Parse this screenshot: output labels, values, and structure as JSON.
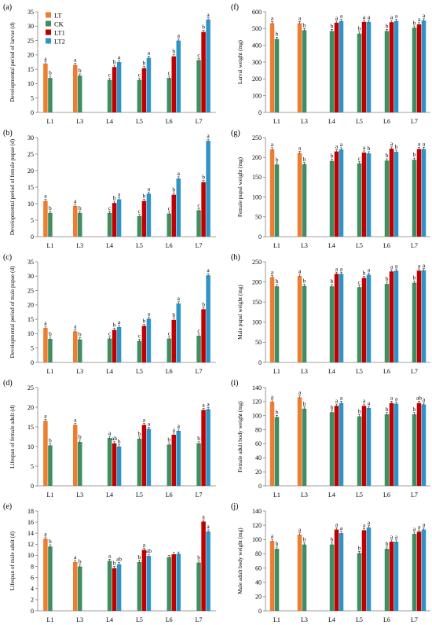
{
  "chart_data": [
    {
      "id": "a",
      "type": "bar",
      "panel_label": "(a)",
      "ylabel": "Developmental period of larvae (d)",
      "ylim": [
        0,
        35
      ],
      "yticks": [
        0,
        5,
        10,
        15,
        20,
        25,
        30,
        35
      ],
      "categories": [
        "L1",
        "L3",
        "L4",
        "L5",
        "L6",
        "L7"
      ],
      "series": [
        {
          "name": "LT",
          "values": [
            17,
            16.5,
            null,
            null,
            null,
            null
          ],
          "letters": [
            "a",
            "a",
            "",
            "",
            "",
            ""
          ]
        },
        {
          "name": "CK",
          "values": [
            12,
            12.8,
            11.3,
            11.3,
            12,
            18.2
          ],
          "letters": [
            "b",
            "b",
            "c",
            "c",
            "c",
            "c"
          ]
        },
        {
          "name": "LT1",
          "values": [
            null,
            null,
            15.8,
            15.4,
            19.5,
            28
          ],
          "letters": [
            "",
            "",
            "b",
            "b",
            "b",
            "b"
          ]
        },
        {
          "name": "LT2",
          "values": [
            null,
            null,
            17.5,
            19,
            25,
            32.3
          ],
          "letters": [
            "",
            "",
            "a",
            "a",
            "a",
            "a"
          ]
        }
      ]
    },
    {
      "id": "b",
      "type": "bar",
      "panel_label": "(b)",
      "ylabel": "Developmental period of female pupae (d)",
      "ylim": [
        0,
        30
      ],
      "yticks": [
        0,
        5,
        10,
        15,
        20,
        25,
        30
      ],
      "categories": [
        "L1",
        "L3",
        "L4",
        "L5",
        "L6",
        "L7"
      ],
      "series": [
        {
          "name": "LT",
          "values": [
            10.8,
            9.3,
            null,
            null,
            null,
            null
          ],
          "letters": [
            "a",
            "a",
            "",
            "",
            "",
            ""
          ]
        },
        {
          "name": "CK",
          "values": [
            7.2,
            7.2,
            7.2,
            6.2,
            7,
            8
          ],
          "letters": [
            "b",
            "b",
            "c",
            "c",
            "c",
            "c"
          ]
        },
        {
          "name": "LT1",
          "values": [
            null,
            null,
            10.2,
            10.8,
            12.7,
            16.5
          ],
          "letters": [
            "",
            "",
            "b",
            "b",
            "b",
            "b"
          ]
        },
        {
          "name": "LT2",
          "values": [
            null,
            null,
            11.3,
            13,
            17.6,
            29
          ],
          "letters": [
            "",
            "",
            "a",
            "a",
            "a",
            "a"
          ]
        }
      ]
    },
    {
      "id": "c",
      "type": "bar",
      "panel_label": "(c)",
      "ylabel": "Developmental period of male pupae (d)",
      "ylim": [
        0,
        35
      ],
      "yticks": [
        0,
        5,
        10,
        15,
        20,
        25,
        30,
        35
      ],
      "categories": [
        "L1",
        "L3",
        "L4",
        "L5",
        "L6",
        "L7"
      ],
      "series": [
        {
          "name": "LT",
          "values": [
            12,
            10.8,
            null,
            null,
            null,
            null
          ],
          "letters": [
            "a",
            "a",
            "",
            "",
            "",
            ""
          ]
        },
        {
          "name": "CK",
          "values": [
            8.2,
            8,
            8.3,
            7.5,
            8.3,
            9.3
          ],
          "letters": [
            "b",
            "b",
            "c",
            "c",
            "c",
            "c"
          ]
        },
        {
          "name": "LT1",
          "values": [
            null,
            null,
            11.3,
            12.7,
            14.8,
            18.5
          ],
          "letters": [
            "",
            "",
            "b",
            "b",
            "b",
            "b"
          ]
        },
        {
          "name": "LT2",
          "values": [
            null,
            null,
            12.3,
            15.2,
            20.5,
            30.3
          ],
          "letters": [
            "",
            "",
            "a",
            "a",
            "a",
            "a"
          ]
        }
      ]
    },
    {
      "id": "d",
      "type": "bar",
      "panel_label": "(d)",
      "ylabel": "Lifespan of female adult (d)",
      "ylim": [
        0,
        25
      ],
      "yticks": [
        0,
        5,
        10,
        15,
        20,
        25
      ],
      "categories": [
        "L1",
        "L3",
        "L4",
        "L5",
        "L6",
        "L7"
      ],
      "series": [
        {
          "name": "LT",
          "values": [
            16.5,
            15.5,
            null,
            null,
            null,
            null
          ],
          "letters": [
            "a",
            "a",
            "",
            "",
            "",
            ""
          ]
        },
        {
          "name": "CK",
          "values": [
            10.3,
            11.2,
            12.2,
            12,
            10.5,
            10.8
          ],
          "letters": [
            "b",
            "b",
            "a",
            "b",
            "b",
            "b"
          ]
        },
        {
          "name": "LT1",
          "values": [
            null,
            null,
            10.8,
            15.5,
            13,
            19.3
          ],
          "letters": [
            "",
            "",
            "ab",
            "a",
            "a",
            "a"
          ]
        },
        {
          "name": "LT2",
          "values": [
            null,
            null,
            10,
            14.5,
            14,
            19.5
          ],
          "letters": [
            "",
            "",
            "b",
            "a",
            "a",
            "a"
          ]
        }
      ]
    },
    {
      "id": "e",
      "type": "bar",
      "panel_label": "(e)",
      "ylabel": "Lifespan of male adult (d)",
      "ylim": [
        0,
        18
      ],
      "yticks": [
        0,
        2,
        4,
        6,
        8,
        10,
        12,
        14,
        16,
        18
      ],
      "categories": [
        "L1",
        "L3",
        "L4",
        "L5",
        "L6",
        "L7"
      ],
      "series": [
        {
          "name": "LT",
          "values": [
            13,
            8.8,
            null,
            null,
            null,
            null
          ],
          "letters": [
            "a",
            "a",
            "",
            "",
            "",
            ""
          ]
        },
        {
          "name": "CK",
          "values": [
            11.6,
            8,
            9,
            8.8,
            9.7,
            8.7
          ],
          "letters": [
            "b",
            "b",
            "a",
            "b",
            "",
            "b"
          ]
        },
        {
          "name": "LT1",
          "values": [
            null,
            null,
            7.7,
            11,
            10.2,
            16.1
          ],
          "letters": [
            "",
            "",
            "b",
            "a",
            "",
            "a"
          ]
        },
        {
          "name": "LT2",
          "values": [
            null,
            null,
            8.4,
            9.9,
            10.3,
            14.3
          ],
          "letters": [
            "",
            "",
            "ab",
            "ab",
            "",
            "a"
          ]
        }
      ]
    },
    {
      "id": "f",
      "type": "bar",
      "panel_label": "(f)",
      "ylabel": "Larval weight (mg)",
      "ylim": [
        0,
        600
      ],
      "yticks": [
        0,
        100,
        200,
        300,
        400,
        500,
        600
      ],
      "categories": [
        "L1",
        "L3",
        "L4",
        "L5",
        "L6",
        "L7"
      ],
      "series": [
        {
          "name": "LT",
          "values": [
            532,
            532,
            null,
            null,
            null,
            null
          ],
          "letters": [
            "a",
            "a",
            "",
            "",
            "",
            ""
          ]
        },
        {
          "name": "CK",
          "values": [
            438,
            490,
            485,
            470,
            485,
            505
          ],
          "letters": [
            "b",
            "b",
            "b",
            "b",
            "b",
            "b"
          ]
        },
        {
          "name": "LT1",
          "values": [
            null,
            null,
            535,
            540,
            538,
            525
          ],
          "letters": [
            "",
            "",
            "a",
            "a",
            "a",
            "a"
          ]
        },
        {
          "name": "LT2",
          "values": [
            null,
            null,
            545,
            540,
            545,
            548
          ],
          "letters": [
            "",
            "",
            "a",
            "a",
            "a",
            "a"
          ]
        }
      ]
    },
    {
      "id": "g",
      "type": "bar",
      "panel_label": "(g)",
      "ylabel": "Female pupal weight (mg)",
      "ylim": [
        0,
        250
      ],
      "yticks": [
        0,
        50,
        100,
        150,
        200,
        250
      ],
      "categories": [
        "L1",
        "L3",
        "L4",
        "L5",
        "L6",
        "L7"
      ],
      "series": [
        {
          "name": "LT",
          "values": [
            220,
            211,
            null,
            null,
            null,
            null
          ],
          "letters": [
            "a",
            "a",
            "",
            "",
            "",
            ""
          ]
        },
        {
          "name": "CK",
          "values": [
            182,
            183,
            191,
            185,
            192,
            194
          ],
          "letters": [
            "b",
            "b",
            "b",
            "c",
            "b",
            "b"
          ]
        },
        {
          "name": "LT1",
          "values": [
            null,
            null,
            215,
            212,
            222,
            221
          ],
          "letters": [
            "",
            "",
            "a",
            "a",
            "a",
            "a"
          ]
        },
        {
          "name": "LT2",
          "values": [
            null,
            null,
            220,
            210,
            214,
            221
          ],
          "letters": [
            "",
            "",
            "a",
            "b",
            "b",
            "a"
          ]
        }
      ]
    },
    {
      "id": "h",
      "type": "bar",
      "panel_label": "(h)",
      "ylabel": "Male pupal weight (mg)",
      "ylim": [
        0,
        250
      ],
      "yticks": [
        0,
        50,
        100,
        150,
        200,
        250
      ],
      "categories": [
        "L1",
        "L3",
        "L4",
        "L5",
        "L6",
        "L7"
      ],
      "series": [
        {
          "name": "LT",
          "values": [
            212,
            215,
            null,
            null,
            null,
            null
          ],
          "letters": [
            "a",
            "a",
            "",
            "",
            "",
            ""
          ]
        },
        {
          "name": "CK",
          "values": [
            189,
            190,
            189,
            187,
            195,
            198
          ],
          "letters": [
            "b",
            "b",
            "b",
            "c",
            "b",
            "b"
          ]
        },
        {
          "name": "LT1",
          "values": [
            null,
            null,
            220,
            210,
            226,
            228
          ],
          "letters": [
            "",
            "",
            "a",
            "b",
            "a",
            "a"
          ]
        },
        {
          "name": "LT2",
          "values": [
            null,
            null,
            220,
            218,
            228,
            229
          ],
          "letters": [
            "",
            "",
            "a",
            "a",
            "a",
            "a"
          ]
        }
      ]
    },
    {
      "id": "i",
      "type": "bar",
      "panel_label": "(i)",
      "ylabel": "Female adult body weight (mg)",
      "ylim": [
        0,
        140
      ],
      "yticks": [
        0,
        20,
        40,
        60,
        80,
        100,
        120,
        140
      ],
      "categories": [
        "L1",
        "L3",
        "L4",
        "L5",
        "L6",
        "L7"
      ],
      "series": [
        {
          "name": "LT",
          "values": [
            120,
            126,
            null,
            null,
            null,
            null
          ],
          "letters": [
            "a",
            "a",
            "",
            "",
            "",
            ""
          ]
        },
        {
          "name": "CK",
          "values": [
            98,
            110,
            105,
            99,
            102,
            102
          ],
          "letters": [
            "b",
            "b",
            "b",
            "b",
            "b",
            "b"
          ]
        },
        {
          "name": "LT1",
          "values": [
            null,
            null,
            114,
            114,
            118,
            118
          ],
          "letters": [
            "",
            "",
            "a",
            "a",
            "a",
            "ab"
          ]
        },
        {
          "name": "LT2",
          "values": [
            null,
            null,
            118,
            111,
            117,
            116
          ],
          "letters": [
            "",
            "",
            "a",
            "a",
            "a",
            "a"
          ]
        }
      ]
    },
    {
      "id": "j",
      "type": "bar",
      "panel_label": "(j)",
      "ylabel": "Male adult body weight (mg)",
      "ylim": [
        0,
        140
      ],
      "yticks": [
        0,
        20,
        40,
        60,
        80,
        100,
        120,
        140
      ],
      "categories": [
        "L1",
        "L3",
        "L4",
        "L5",
        "L6",
        "L7"
      ],
      "series": [
        {
          "name": "LT",
          "values": [
            98,
            107,
            null,
            null,
            null,
            null
          ],
          "letters": [
            "a",
            "a",
            "",
            "",
            "",
            ""
          ]
        },
        {
          "name": "CK",
          "values": [
            87,
            93,
            93,
            81,
            87,
            108
          ],
          "letters": [
            "b",
            "b",
            "b",
            "b",
            "b",
            "a"
          ]
        },
        {
          "name": "LT1",
          "values": [
            null,
            null,
            114,
            113,
            97,
            111
          ],
          "letters": [
            "",
            "",
            "a",
            "a",
            "a",
            "a"
          ]
        },
        {
          "name": "LT2",
          "values": [
            null,
            null,
            109,
            117,
            97,
            114
          ],
          "letters": [
            "",
            "",
            "a",
            "a",
            "a",
            "a"
          ]
        }
      ]
    }
  ],
  "legend": [
    {
      "name": "LT",
      "color": "#ED7D31"
    },
    {
      "name": "CK",
      "color": "#3E8E62"
    },
    {
      "name": "LT1",
      "color": "#C00000"
    },
    {
      "name": "LT2",
      "color": "#2E93C7"
    }
  ],
  "legend_placement": "inside panel (a), upper-left",
  "colors": {
    "LT": "#ED7D31",
    "CK": "#3E8E62",
    "LT1": "#C00000",
    "LT2": "#2E93C7"
  }
}
